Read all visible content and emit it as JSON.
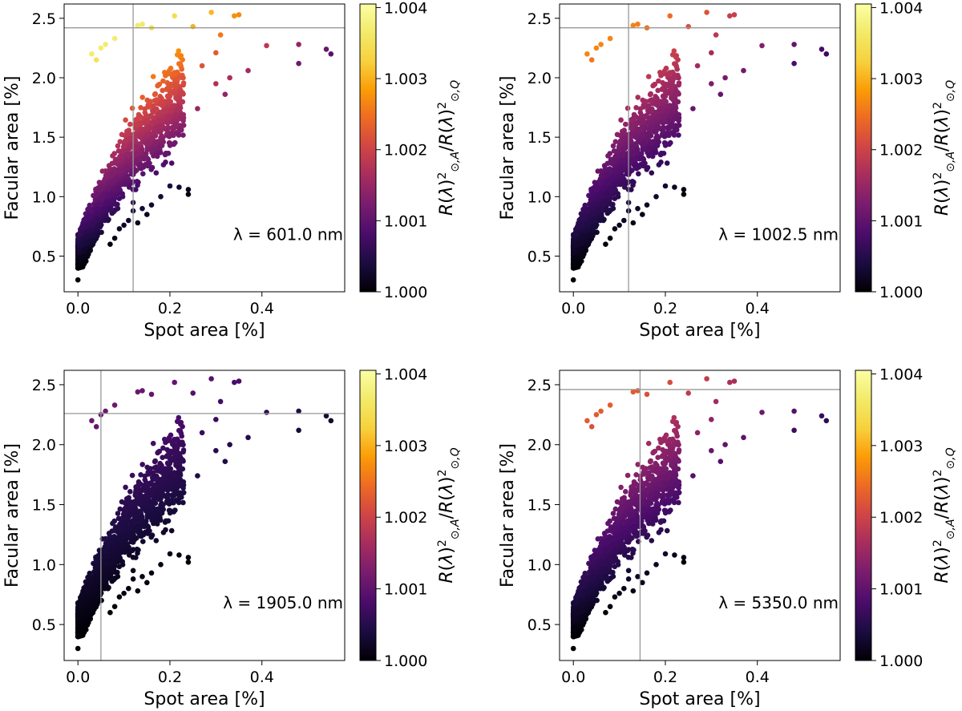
{
  "chart_data": [
    {
      "type": "scatter",
      "id": "p1",
      "xlabel": "Spot area [%]",
      "ylabel": "Facular area [%]",
      "xlim": [
        -0.03,
        0.58
      ],
      "ylim": [
        0.2,
        2.62
      ],
      "xticks": [
        0.0,
        0.2,
        0.4
      ],
      "xtick_labels": [
        "0.0",
        "0.2",
        "0.4"
      ],
      "yticks": [
        0.5,
        1.0,
        1.5,
        2.0,
        2.5
      ],
      "ytick_labels": [
        "0.5",
        "1.0",
        "1.5",
        "2.0",
        "2.5"
      ],
      "annotation": "λ = 601.0 nm",
      "ref_x": 0.12,
      "ref_y": 2.42,
      "color_range": [
        1.0,
        1.00405
      ],
      "color_weight": 1.0,
      "colorbar_label": "R(λ)²⊙,A/R(λ)²⊙,Q",
      "colorbar_ticks": [
        1.0,
        1.001,
        1.002,
        1.003,
        1.004
      ],
      "colorbar_tick_labels": [
        "1.000",
        "1.001",
        "1.002",
        "1.003",
        "1.004"
      ]
    },
    {
      "type": "scatter",
      "id": "p2",
      "xlabel": "Spot area [%]",
      "ylabel": "Facular area [%]",
      "xlim": [
        -0.03,
        0.58
      ],
      "ylim": [
        0.2,
        2.62
      ],
      "xticks": [
        0.0,
        0.2,
        0.4
      ],
      "xtick_labels": [
        "0.0",
        "0.2",
        "0.4"
      ],
      "yticks": [
        0.5,
        1.0,
        1.5,
        2.0,
        2.5
      ],
      "ytick_labels": [
        "0.5",
        "1.0",
        "1.5",
        "2.0",
        "2.5"
      ],
      "annotation": "λ = 1002.5 nm",
      "ref_x": 0.12,
      "ref_y": 2.42,
      "color_range": [
        1.0,
        1.00405
      ],
      "color_weight": 0.72,
      "colorbar_label": "R(λ)²⊙,A/R(λ)²⊙,Q",
      "colorbar_ticks": [
        1.0,
        1.001,
        1.002,
        1.003,
        1.004
      ],
      "colorbar_tick_labels": [
        "1.000",
        "1.001",
        "1.002",
        "1.003",
        "1.004"
      ]
    },
    {
      "type": "scatter",
      "id": "p3",
      "xlabel": "Spot area [%]",
      "ylabel": "Facular area [%]",
      "xlim": [
        -0.03,
        0.58
      ],
      "ylim": [
        0.2,
        2.62
      ],
      "xticks": [
        0.0,
        0.2,
        0.4
      ],
      "xtick_labels": [
        "0.0",
        "0.2",
        "0.4"
      ],
      "yticks": [
        0.5,
        1.0,
        1.5,
        2.0,
        2.5
      ],
      "ytick_labels": [
        "0.5",
        "1.0",
        "1.5",
        "2.0",
        "2.5"
      ],
      "annotation": "λ = 1905.0 nm",
      "ref_x": 0.05,
      "ref_y": 2.26,
      "color_range": [
        1.0,
        1.00405
      ],
      "color_weight": 0.3,
      "colorbar_label": "R(λ)²⊙,A/R(λ)²⊙,Q",
      "colorbar_ticks": [
        1.0,
        1.001,
        1.002,
        1.003,
        1.004
      ],
      "colorbar_tick_labels": [
        "1.000",
        "1.001",
        "1.002",
        "1.003",
        "1.004"
      ]
    },
    {
      "type": "scatter",
      "id": "p4",
      "xlabel": "Spot area [%]",
      "ylabel": "Facular area [%]",
      "xlim": [
        -0.03,
        0.58
      ],
      "ylim": [
        0.2,
        2.62
      ],
      "xticks": [
        0.0,
        0.2,
        0.4
      ],
      "xtick_labels": [
        "0.0",
        "0.2",
        "0.4"
      ],
      "yticks": [
        0.5,
        1.0,
        1.5,
        2.0,
        2.5
      ],
      "ytick_labels": [
        "0.5",
        "1.0",
        "1.5",
        "2.0",
        "2.5"
      ],
      "annotation": "λ = 5350.0 nm",
      "ref_x": 0.145,
      "ref_y": 2.46,
      "color_range": [
        1.0,
        1.00405
      ],
      "color_weight": 0.62,
      "colorbar_label": "R(λ)²⊙,A/R(λ)²⊙,Q",
      "colorbar_ticks": [
        1.0,
        1.001,
        1.002,
        1.003,
        1.004
      ],
      "colorbar_tick_labels": [
        "1.000",
        "1.001",
        "1.002",
        "1.003",
        "1.004"
      ]
    }
  ],
  "scatter_points": [
    [
      0.0,
      0.3
    ],
    [
      0.29,
      2.55
    ],
    [
      0.35,
      2.53
    ],
    [
      0.34,
      2.52
    ],
    [
      0.21,
      2.52
    ],
    [
      0.14,
      2.45
    ],
    [
      0.13,
      2.44
    ],
    [
      0.16,
      2.42
    ],
    [
      0.25,
      2.43
    ],
    [
      0.31,
      2.36
    ],
    [
      0.41,
      2.27
    ],
    [
      0.48,
      2.28
    ],
    [
      0.54,
      2.24
    ],
    [
      0.55,
      2.2
    ],
    [
      0.48,
      2.12
    ],
    [
      0.37,
      2.06
    ],
    [
      0.3,
      2.21
    ],
    [
      0.27,
      2.1
    ],
    [
      0.33,
      2.0
    ],
    [
      0.32,
      1.86
    ],
    [
      0.3,
      1.95
    ],
    [
      0.26,
      1.74
    ],
    [
      0.22,
      1.08
    ],
    [
      0.24,
      1.06
    ],
    [
      0.24,
      1.02
    ],
    [
      0.2,
      1.09
    ],
    [
      0.18,
      1.0
    ],
    [
      0.12,
      0.88
    ],
    [
      0.1,
      0.76
    ],
    [
      0.09,
      0.73
    ],
    [
      0.11,
      0.8
    ],
    [
      0.08,
      0.65
    ],
    [
      0.12,
      0.95
    ],
    [
      0.17,
      1.2
    ],
    [
      0.06,
      2.28
    ],
    [
      0.08,
      2.33
    ],
    [
      0.05,
      2.25
    ],
    [
      0.03,
      2.2
    ],
    [
      0.04,
      2.15
    ],
    [
      0.18,
      1.55
    ],
    [
      0.2,
      1.45
    ],
    [
      0.23,
      1.6
    ],
    [
      0.22,
      1.55
    ],
    [
      0.21,
      1.7
    ],
    [
      0.19,
      1.8
    ],
    [
      0.15,
      0.85
    ],
    [
      0.16,
      0.93
    ],
    [
      0.14,
      0.9
    ],
    [
      0.13,
      0.78
    ],
    [
      0.07,
      0.6
    ]
  ]
}
